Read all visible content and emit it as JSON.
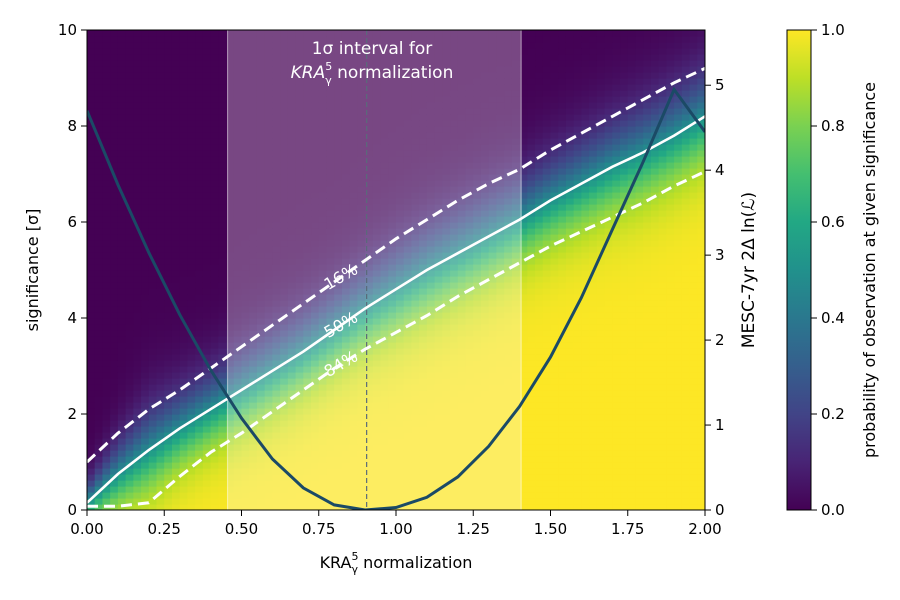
{
  "chart_data": {
    "type": "heatmap",
    "x_axis": {
      "label_main": "KRA",
      "label_sup": "5",
      "label_sub": "γ",
      "label_rest": " normalization",
      "range": [
        0,
        2
      ],
      "ticks": [
        "0.00",
        "0.25",
        "0.50",
        "0.75",
        "1.00",
        "1.25",
        "1.50",
        "1.75",
        "2.00"
      ]
    },
    "y_axis_left": {
      "label": "significance [σ]",
      "range": [
        0,
        10
      ],
      "ticks": [
        "0",
        "2",
        "4",
        "6",
        "8",
        "10"
      ]
    },
    "y_axis_right": {
      "label": "MESC-7yr 2Δ ln(ℒ)",
      "label_color": "#1b4a66",
      "range": [
        0,
        5.65
      ],
      "ticks": [
        "0",
        "1",
        "2",
        "3",
        "4",
        "5"
      ]
    },
    "colorbar": {
      "label": "probability of observation at given significance",
      "colormap": "viridis",
      "range": [
        0,
        1
      ],
      "ticks": [
        "0.0",
        "0.2",
        "0.4",
        "0.6",
        "0.8",
        "1.0"
      ]
    },
    "interval": {
      "x_low": 0.455,
      "x_high": 1.405,
      "best_fit": 0.905,
      "label_line1": "1σ interval for",
      "label_line2_main": "KRA",
      "label_line2_sup": "5",
      "label_line2_sub": "γ",
      "label_line2_rest": " normalization"
    },
    "contours": [
      {
        "name": "16%",
        "style": "dashed",
        "x": [
          0,
          0.1,
          0.2,
          0.3,
          0.4,
          0.5,
          0.6,
          0.7,
          0.8,
          0.9,
          1.0,
          1.1,
          1.2,
          1.3,
          1.4,
          1.5,
          1.6,
          1.7,
          1.8,
          1.9,
          2.0
        ],
        "y": [
          1.0,
          1.6,
          2.1,
          2.5,
          2.95,
          3.4,
          3.85,
          4.3,
          4.75,
          5.2,
          5.65,
          6.05,
          6.45,
          6.8,
          7.1,
          7.5,
          7.85,
          8.2,
          8.55,
          8.9,
          9.2
        ]
      },
      {
        "name": "50%",
        "style": "solid",
        "x": [
          0,
          0.1,
          0.2,
          0.3,
          0.4,
          0.5,
          0.6,
          0.7,
          0.8,
          0.9,
          1.0,
          1.1,
          1.2,
          1.3,
          1.4,
          1.5,
          1.6,
          1.7,
          1.8,
          1.9,
          2.0
        ],
        "y": [
          0.15,
          0.75,
          1.25,
          1.7,
          2.1,
          2.5,
          2.9,
          3.3,
          3.75,
          4.2,
          4.6,
          5.0,
          5.35,
          5.7,
          6.05,
          6.45,
          6.8,
          7.15,
          7.45,
          7.8,
          8.2
        ]
      },
      {
        "name": "84%",
        "style": "dashed",
        "x": [
          0,
          0.1,
          0.2,
          0.3,
          0.4,
          0.5,
          0.6,
          0.7,
          0.8,
          0.9,
          1.0,
          1.1,
          1.2,
          1.3,
          1.4,
          1.5,
          1.6,
          1.7,
          1.8,
          1.9,
          2.0
        ],
        "y": [
          0.08,
          0.08,
          0.15,
          0.7,
          1.2,
          1.6,
          2.05,
          2.5,
          2.95,
          3.35,
          3.7,
          4.05,
          4.45,
          4.8,
          5.15,
          5.5,
          5.8,
          6.1,
          6.4,
          6.75,
          7.05
        ]
      }
    ],
    "likelihood_curve": {
      "name": "MESC-7yr 2Δ ln(ℒ)",
      "color": "#1b4a66",
      "x": [
        0,
        0.1,
        0.2,
        0.3,
        0.4,
        0.5,
        0.6,
        0.7,
        0.8,
        0.9,
        1.0,
        1.1,
        1.2,
        1.3,
        1.4,
        1.5,
        1.6,
        1.7,
        1.8,
        1.9,
        2.0
      ],
      "y": [
        4.7,
        3.83,
        3.03,
        2.3,
        1.65,
        1.08,
        0.6,
        0.26,
        0.06,
        0.0,
        0.03,
        0.15,
        0.39,
        0.75,
        1.22,
        1.8,
        2.5,
        3.3,
        4.1,
        4.95,
        4.45
      ]
    }
  }
}
